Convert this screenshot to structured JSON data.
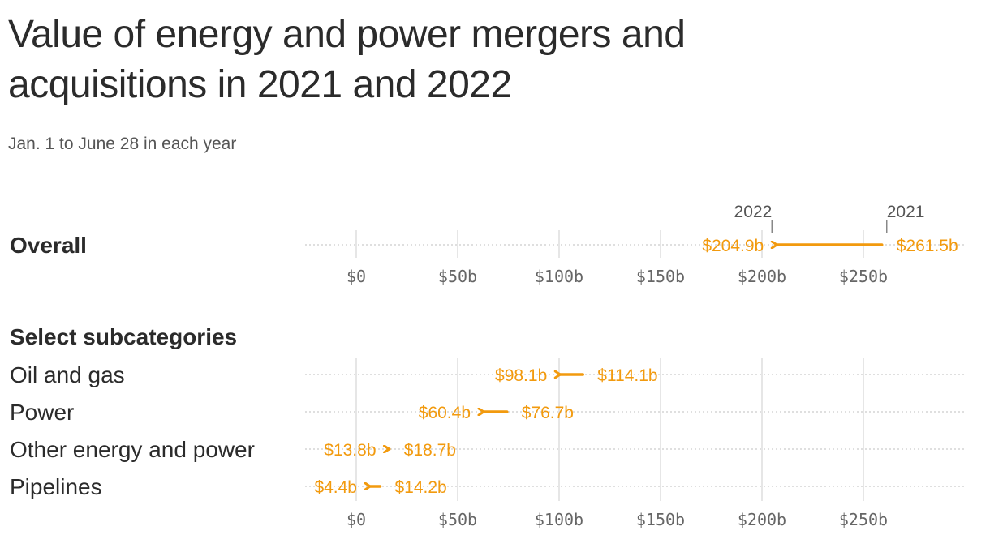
{
  "title": "Value of energy and power mergers and acquisitions in 2021 and 2022",
  "subtitle": "Jan. 1 to June 28 in each year",
  "colors": {
    "arrow": "#f29a0e",
    "grid": "#dddddd",
    "text": "#2b2b2b"
  },
  "chart_data": [
    {
      "type": "arrow-dot",
      "title": "",
      "series_labels": [
        "2021",
        "2022"
      ],
      "xlim": [
        0,
        300
      ],
      "ticks": [
        0,
        50,
        100,
        150,
        200,
        250
      ],
      "tick_labels": [
        "$0",
        "$50b",
        "$100b",
        "$150b",
        "$200b",
        "$250b"
      ],
      "rows": [
        {
          "label": "Overall",
          "from": 261.5,
          "to": 204.9,
          "from_label": "$261.5b",
          "to_label": "$204.9b"
        }
      ]
    },
    {
      "type": "arrow-dot",
      "title": "Select subcategories",
      "xlim": [
        0,
        300
      ],
      "ticks": [
        0,
        50,
        100,
        150,
        200,
        250
      ],
      "tick_labels": [
        "$0",
        "$50b",
        "$100b",
        "$150b",
        "$200b",
        "$250b"
      ],
      "rows": [
        {
          "label": "Oil and gas",
          "from": 114.1,
          "to": 98.1,
          "from_label": "$114.1b",
          "to_label": "$98.1b"
        },
        {
          "label": "Power",
          "from": 76.7,
          "to": 60.4,
          "from_label": "$76.7b",
          "to_label": "$60.4b"
        },
        {
          "label": "Other energy and power",
          "from": 18.7,
          "to": 13.8,
          "from_label": "$18.7b",
          "to_label": "$13.8b"
        },
        {
          "label": "Pipelines",
          "from": 14.2,
          "to": 4.4,
          "from_label": "$14.2b",
          "to_label": "$4.4b"
        }
      ]
    }
  ]
}
